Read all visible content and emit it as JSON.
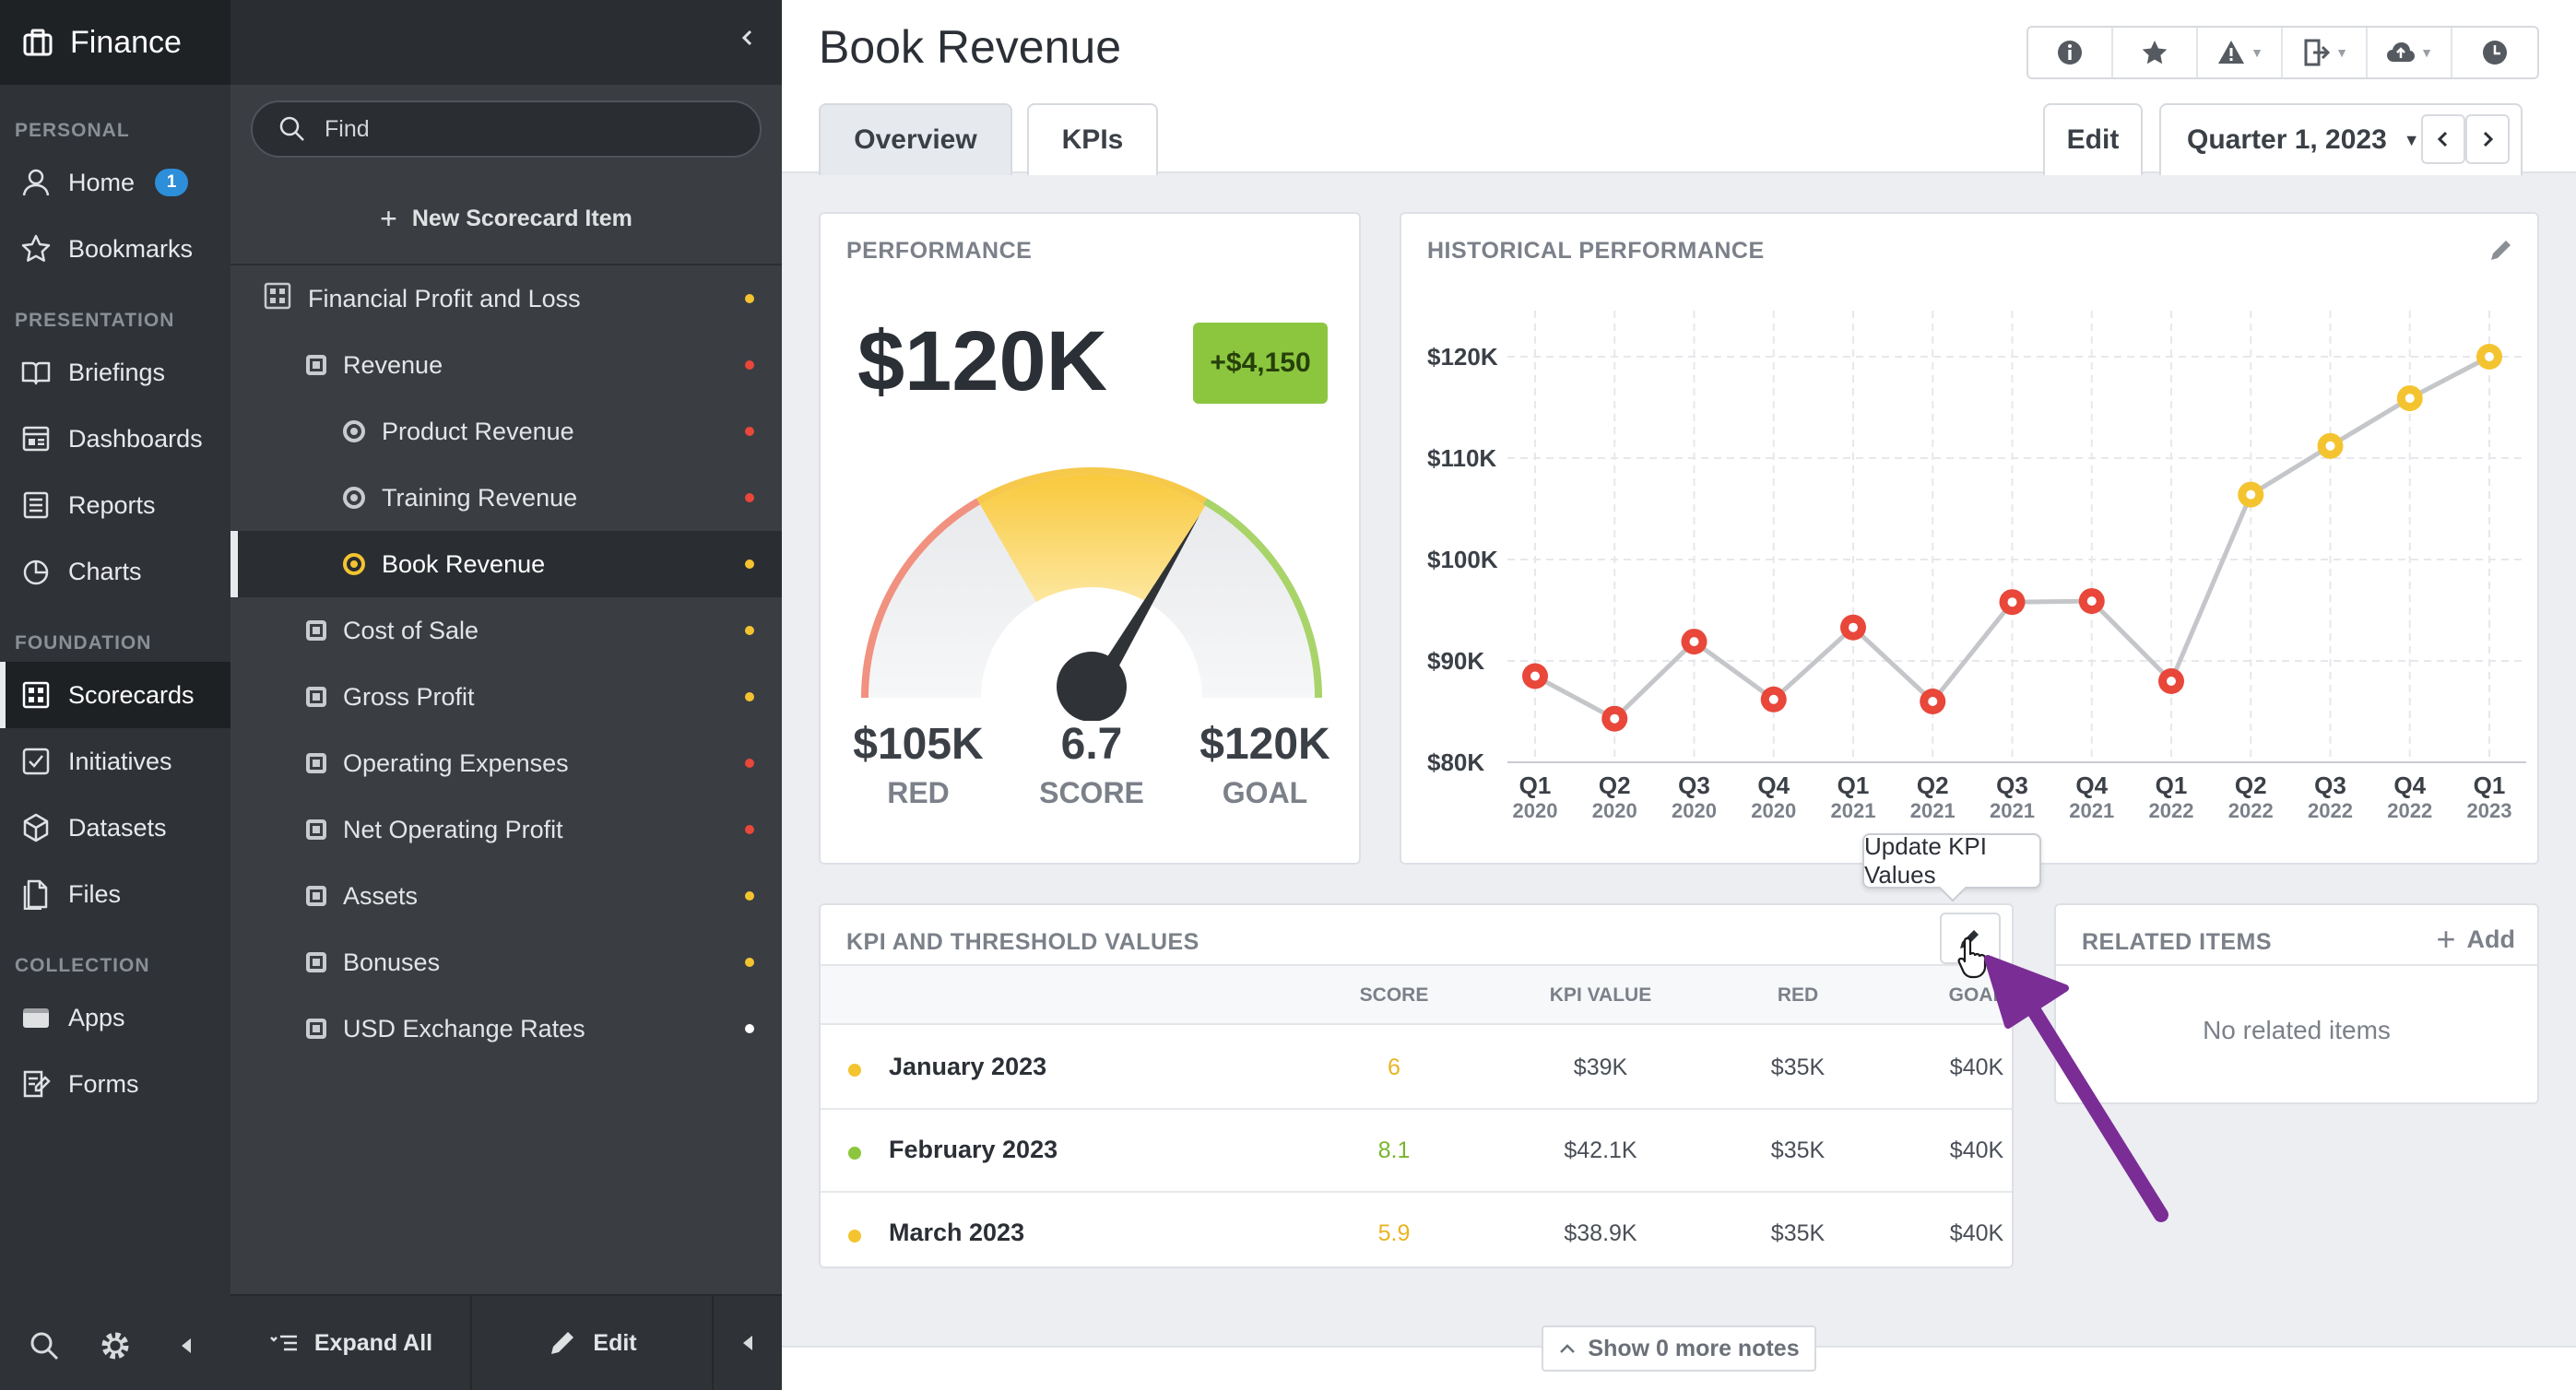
{
  "app": {
    "title": "Finance"
  },
  "nav": {
    "sections": [
      {
        "label": "PERSONAL",
        "items": [
          {
            "label": "Home",
            "icon": "user-icon",
            "badge": "1"
          },
          {
            "label": "Bookmarks",
            "icon": "star-icon"
          }
        ]
      },
      {
        "label": "PRESENTATION",
        "items": [
          {
            "label": "Briefings",
            "icon": "book-icon"
          },
          {
            "label": "Dashboards",
            "icon": "dashboard-icon"
          },
          {
            "label": "Reports",
            "icon": "list-icon"
          },
          {
            "label": "Charts",
            "icon": "pie-chart-icon"
          }
        ]
      },
      {
        "label": "FOUNDATION",
        "items": [
          {
            "label": "Scorecards",
            "icon": "scorecard-icon",
            "active": true
          },
          {
            "label": "Initiatives",
            "icon": "checkbox-icon"
          },
          {
            "label": "Datasets",
            "icon": "cube-icon"
          },
          {
            "label": "Files",
            "icon": "file-icon"
          }
        ]
      },
      {
        "label": "COLLECTION",
        "items": [
          {
            "label": "Apps",
            "icon": "app-icon"
          },
          {
            "label": "Forms",
            "icon": "form-icon"
          }
        ]
      }
    ]
  },
  "tree": {
    "search_placeholder": "Find",
    "new_item_label": "New Scorecard Item",
    "items": [
      {
        "label": "Financial Profit and Loss",
        "level": 0,
        "kind": "scorecard",
        "status": "#f4c430"
      },
      {
        "label": "Revenue",
        "level": 1,
        "kind": "objective",
        "status": "#e8473a"
      },
      {
        "label": "Product Revenue",
        "level": 2,
        "kind": "kpi",
        "status": "#e8473a"
      },
      {
        "label": "Training Revenue",
        "level": 2,
        "kind": "kpi",
        "status": "#e8473a"
      },
      {
        "label": "Book Revenue",
        "level": 2,
        "kind": "kpi",
        "status": "#f4c430",
        "active": true
      },
      {
        "label": "Cost of Sale",
        "level": 1,
        "kind": "objective",
        "status": "#f4c430"
      },
      {
        "label": "Gross Profit",
        "level": 1,
        "kind": "objective",
        "status": "#f4c430"
      },
      {
        "label": "Operating Expenses",
        "level": 1,
        "kind": "objective",
        "status": "#e8473a"
      },
      {
        "label": "Net Operating Profit",
        "level": 1,
        "kind": "objective",
        "status": "#e8473a"
      },
      {
        "label": "Assets",
        "level": 1,
        "kind": "objective",
        "status": "#f4c430"
      },
      {
        "label": "Bonuses",
        "level": 1,
        "kind": "objective",
        "status": "#f4c430"
      },
      {
        "label": "USD Exchange Rates",
        "level": 1,
        "kind": "objective",
        "status": "#ffffff"
      }
    ],
    "expand_all_label": "Expand All",
    "edit_label": "Edit"
  },
  "main": {
    "title": "Book Revenue",
    "tabs": [
      "Overview",
      "KPIs"
    ],
    "edit_label": "Edit",
    "period": "Quarter 1, 2023",
    "performance": {
      "title": "PERFORMANCE",
      "value": "$120K",
      "change": "+$4,150",
      "red_value": "$105K",
      "red_label": "RED",
      "score_value": "6.7",
      "score_label": "SCORE",
      "goal_value": "$120K",
      "goal_label": "GOAL",
      "gauge_score": 6.7,
      "gauge_max": 10
    },
    "historical": {
      "title": "HISTORICAL PERFORMANCE"
    },
    "kpi_table": {
      "title": "KPI AND THRESHOLD VALUES",
      "columns": [
        "SCORE",
        "KPI VALUE",
        "RED",
        "GOAL"
      ],
      "rows": [
        {
          "name": "January 2023",
          "score": "6",
          "kpi": "$39K",
          "red": "$35K",
          "goal": "$40K",
          "color": "#f4c430"
        },
        {
          "name": "February 2023",
          "score": "8.1",
          "kpi": "$42.1K",
          "red": "$35K",
          "goal": "$40K",
          "color": "#8cc63f"
        },
        {
          "name": "March 2023",
          "score": "5.9",
          "kpi": "$38.9K",
          "red": "$35K",
          "goal": "$40K",
          "color": "#f4c430"
        }
      ]
    },
    "tooltip": "Update KPI Values",
    "related": {
      "title": "RELATED ITEMS",
      "add_label": "Add",
      "empty": "No related items"
    },
    "more_notes": "Show 0 more notes"
  },
  "colors": {
    "red": "#e8473a",
    "yellow": "#f4c430",
    "green": "#8cc63f",
    "accent_arrow": "#7b2d96"
  },
  "chart_data": {
    "type": "line",
    "title": "",
    "x": [
      "Q1 2020",
      "Q2 2020",
      "Q3 2020",
      "Q4 2020",
      "Q1 2021",
      "Q2 2021",
      "Q3 2021",
      "Q4 2021",
      "Q1 2022",
      "Q2 2022",
      "Q3 2022",
      "Q4 2022",
      "Q1 2023"
    ],
    "x_top": [
      "Q1",
      "Q2",
      "Q3",
      "Q4",
      "Q1",
      "Q2",
      "Q3",
      "Q4",
      "Q1",
      "Q2",
      "Q3",
      "Q4",
      "Q1"
    ],
    "x_bottom": [
      "2020",
      "2020",
      "2020",
      "2020",
      "2021",
      "2021",
      "2021",
      "2021",
      "2022",
      "2022",
      "2022",
      "2022",
      "2023"
    ],
    "series": [
      {
        "values": [
          88.5,
          84.3,
          91.9,
          86.2,
          93.3,
          86.0,
          95.8,
          95.9,
          88.0,
          106.4,
          111.2,
          115.9,
          120.0
        ]
      }
    ],
    "point_colors": [
      "#e8473a",
      "#e8473a",
      "#e8473a",
      "#e8473a",
      "#e8473a",
      "#e8473a",
      "#e8473a",
      "#e8473a",
      "#e8473a",
      "#f4c430",
      "#f4c430",
      "#f4c430",
      "#f4c430"
    ],
    "y_ticks": [
      80,
      90,
      100,
      110,
      120
    ],
    "y_tick_labels": [
      "$80K",
      "$90K",
      "$100K",
      "$110K",
      "$120K"
    ],
    "ylim": [
      80,
      120
    ],
    "grid": true,
    "xlabel": "",
    "ylabel": ""
  }
}
